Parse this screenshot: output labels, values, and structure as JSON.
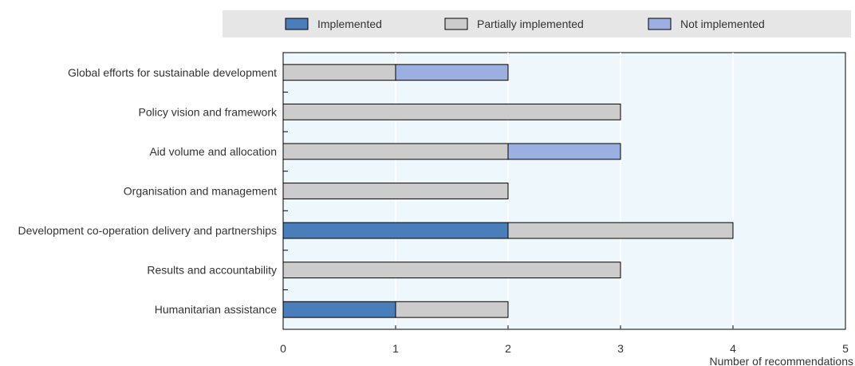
{
  "chart_data": {
    "type": "bar",
    "orientation": "horizontal",
    "stacked": true,
    "categories": [
      "Global efforts for sustainable development",
      "Policy vision and framework",
      "Aid volume and allocation",
      "Organisation and management",
      "Development co-operation delivery and partnerships",
      "Results and accountability",
      "Humanitarian assistance"
    ],
    "series": [
      {
        "name": "Implemented",
        "color": "#4a7ebb",
        "values": [
          0,
          0,
          0,
          0,
          2,
          0,
          1
        ]
      },
      {
        "name": "Partially implemented",
        "color": "#cccccc",
        "values": [
          1,
          3,
          2,
          2,
          2,
          3,
          1
        ]
      },
      {
        "name": "Not implemented",
        "color": "#9bb0e0",
        "values": [
          1,
          0,
          1,
          0,
          0,
          0,
          0
        ]
      }
    ],
    "xlabel": "Number of recommendations",
    "xlim": [
      0,
      5
    ],
    "xticks": [
      "0",
      "1",
      "2",
      "3",
      "4",
      "5"
    ],
    "grid": true,
    "legend_position": "top",
    "plot_background": "#eef7fc"
  }
}
